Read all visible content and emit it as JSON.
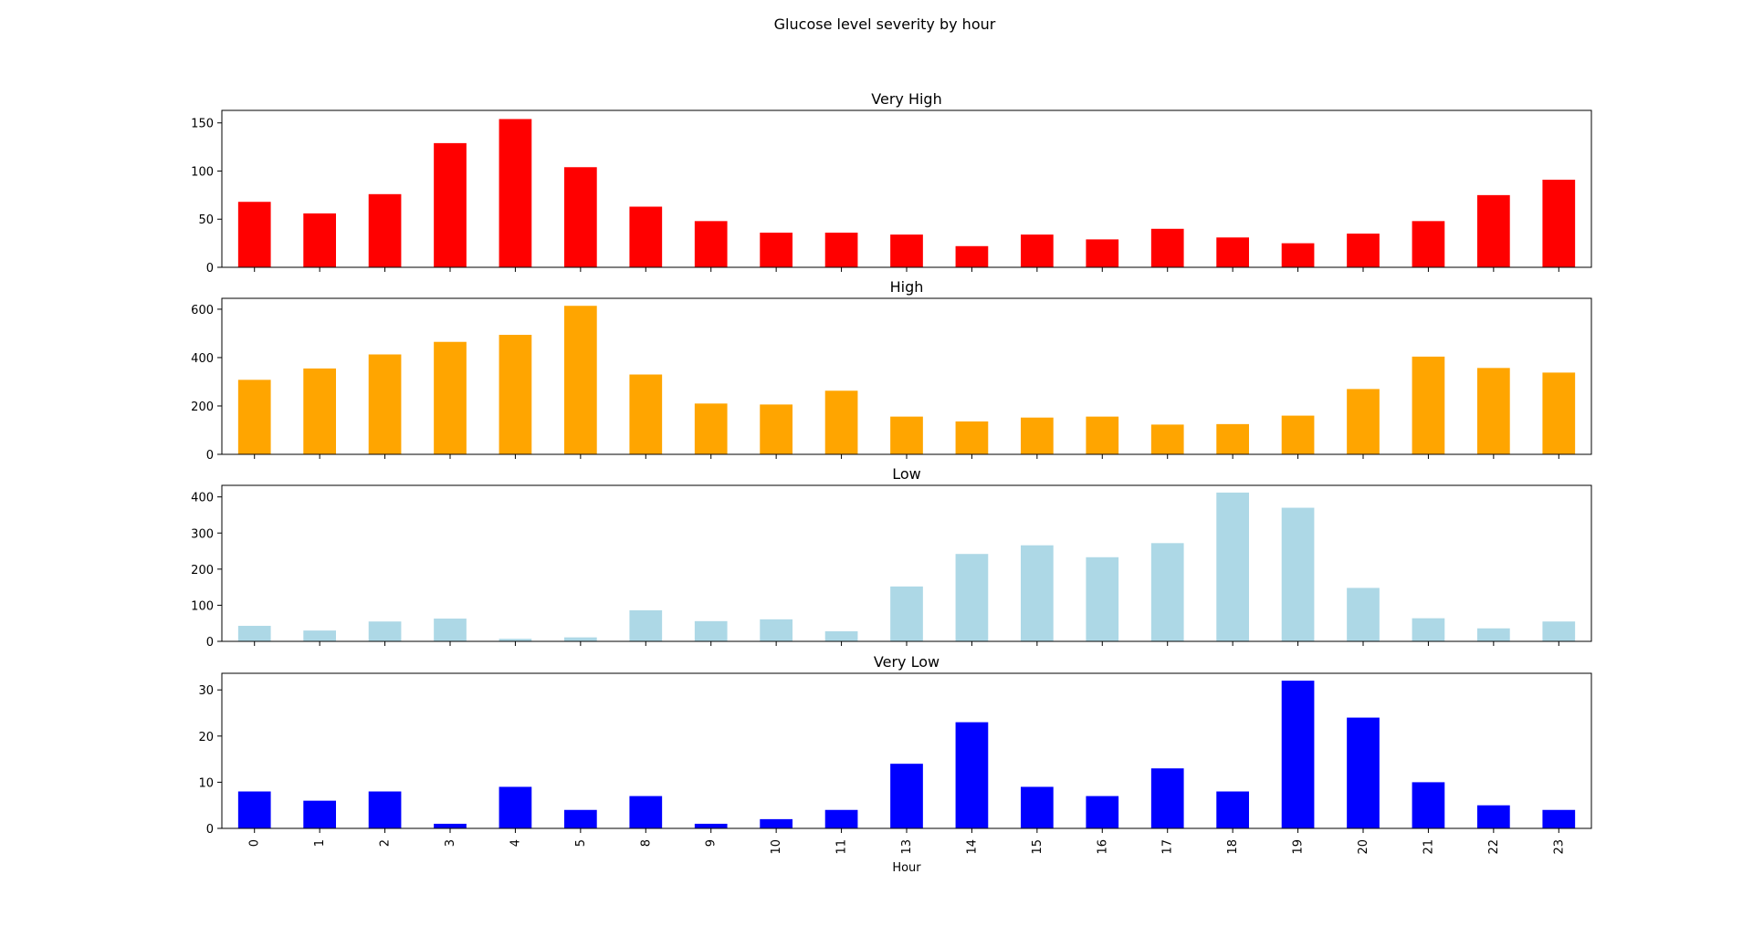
{
  "figure": {
    "title": "Glucose level severity by hour"
  },
  "chart_data": {
    "type": "bar",
    "title": "Glucose level severity by hour",
    "xlabel": "Hour",
    "categories": [
      "0",
      "1",
      "2",
      "3",
      "4",
      "5",
      "8",
      "9",
      "10",
      "11",
      "13",
      "14",
      "15",
      "16",
      "17",
      "18",
      "19",
      "20",
      "21",
      "22",
      "23"
    ],
    "subplots": [
      {
        "title": "Very High",
        "color": "#ff0000",
        "ylim": [
          0,
          163
        ],
        "yticks": [
          0,
          50,
          100,
          150
        ],
        "values": [
          68,
          56,
          76,
          129,
          154,
          104,
          63,
          48,
          36,
          36,
          34,
          22,
          34,
          29,
          40,
          31,
          25,
          35,
          48,
          75,
          91
        ]
      },
      {
        "title": "High",
        "color": "#ffa500",
        "ylim": [
          0,
          645
        ],
        "yticks": [
          0,
          200,
          400,
          600
        ],
        "values": [
          308,
          355,
          413,
          465,
          494,
          614,
          330,
          210,
          206,
          263,
          156,
          136,
          152,
          156,
          123,
          125,
          160,
          270,
          404,
          357,
          338
        ]
      },
      {
        "title": "Low",
        "color": "#add8e6",
        "ylim": [
          0,
          432
        ],
        "yticks": [
          0,
          100,
          200,
          300,
          400
        ],
        "values": [
          43,
          30,
          55,
          63,
          7,
          11,
          86,
          56,
          61,
          28,
          152,
          242,
          266,
          233,
          272,
          412,
          370,
          148,
          64,
          36,
          55
        ]
      },
      {
        "title": "Very Low",
        "color": "#0000ff",
        "ylim": [
          0,
          33.6
        ],
        "yticks": [
          0,
          10,
          20,
          30
        ],
        "values": [
          8,
          6,
          8,
          1,
          9,
          4,
          7,
          1,
          2,
          4,
          14,
          23,
          9,
          7,
          13,
          8,
          32,
          24,
          10,
          5,
          4
        ]
      }
    ]
  }
}
